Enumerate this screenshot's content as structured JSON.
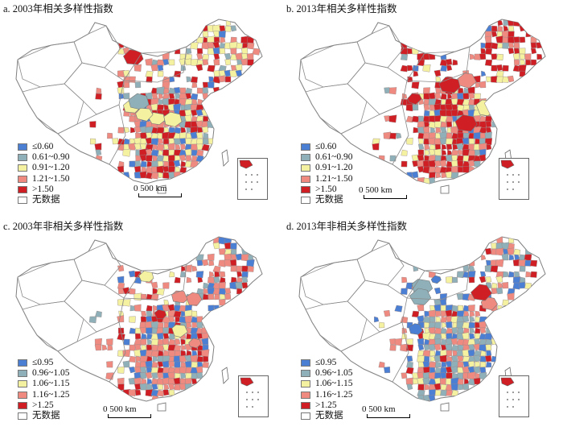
{
  "colors": {
    "c1": "#4a7fd4",
    "c2": "#8fb0b8",
    "c3": "#f4f1a0",
    "c4": "#ee8a80",
    "c5": "#cf1f25",
    "none": "#ffffff",
    "border": "#7f7f7f"
  },
  "scale_text": "0  500 km",
  "panels": [
    {
      "title": "a. 2003年相关多样性指数",
      "legend": [
        {
          "label": "≤0.60",
          "color": "#4a7fd4"
        },
        {
          "label": "0.61~0.90",
          "color": "#8fb0b8"
        },
        {
          "label": "0.91~1.20",
          "color": "#f4f1a0"
        },
        {
          "label": "1.21~1.50",
          "color": "#ee8a80"
        },
        {
          "label": ">1.50",
          "color": "#cf1f25"
        },
        {
          "label": "无数据",
          "color": "#ffffff"
        }
      ],
      "weights": [
        0.12,
        0.14,
        0.22,
        0.27,
        0.25
      ]
    },
    {
      "title": "b. 2013年相关多样性指数",
      "legend": [
        {
          "label": "≤0.60",
          "color": "#4a7fd4"
        },
        {
          "label": "0.61~0.90",
          "color": "#8fb0b8"
        },
        {
          "label": "0.91~1.20",
          "color": "#f4f1a0"
        },
        {
          "label": "1.21~1.50",
          "color": "#ee8a80"
        },
        {
          "label": ">1.50",
          "color": "#cf1f25"
        },
        {
          "label": "无数据",
          "color": "#ffffff"
        }
      ],
      "weights": [
        0.08,
        0.07,
        0.15,
        0.25,
        0.45
      ]
    },
    {
      "title": "c. 2003年非相关多样性指数",
      "legend": [
        {
          "label": "≤0.95",
          "color": "#4a7fd4"
        },
        {
          "label": "0.96~1.05",
          "color": "#8fb0b8"
        },
        {
          "label": "1.06~1.15",
          "color": "#f4f1a0"
        },
        {
          "label": "1.16~1.25",
          "color": "#ee8a80"
        },
        {
          "label": ">1.25",
          "color": "#cf1f25"
        },
        {
          "label": "无数据",
          "color": "#ffffff"
        }
      ],
      "weights": [
        0.18,
        0.15,
        0.12,
        0.4,
        0.15
      ]
    },
    {
      "title": "d. 2013年非相关多样性指数",
      "legend": [
        {
          "label": "≤0.95",
          "color": "#4a7fd4"
        },
        {
          "label": "0.96~1.05",
          "color": "#8fb0b8"
        },
        {
          "label": "1.06~1.15",
          "color": "#f4f1a0"
        },
        {
          "label": "1.16~1.25",
          "color": "#ee8a80"
        },
        {
          "label": ">1.25",
          "color": "#cf1f25"
        },
        {
          "label": "无数据",
          "color": "#ffffff"
        }
      ],
      "weights": [
        0.2,
        0.22,
        0.2,
        0.28,
        0.1
      ]
    }
  ]
}
